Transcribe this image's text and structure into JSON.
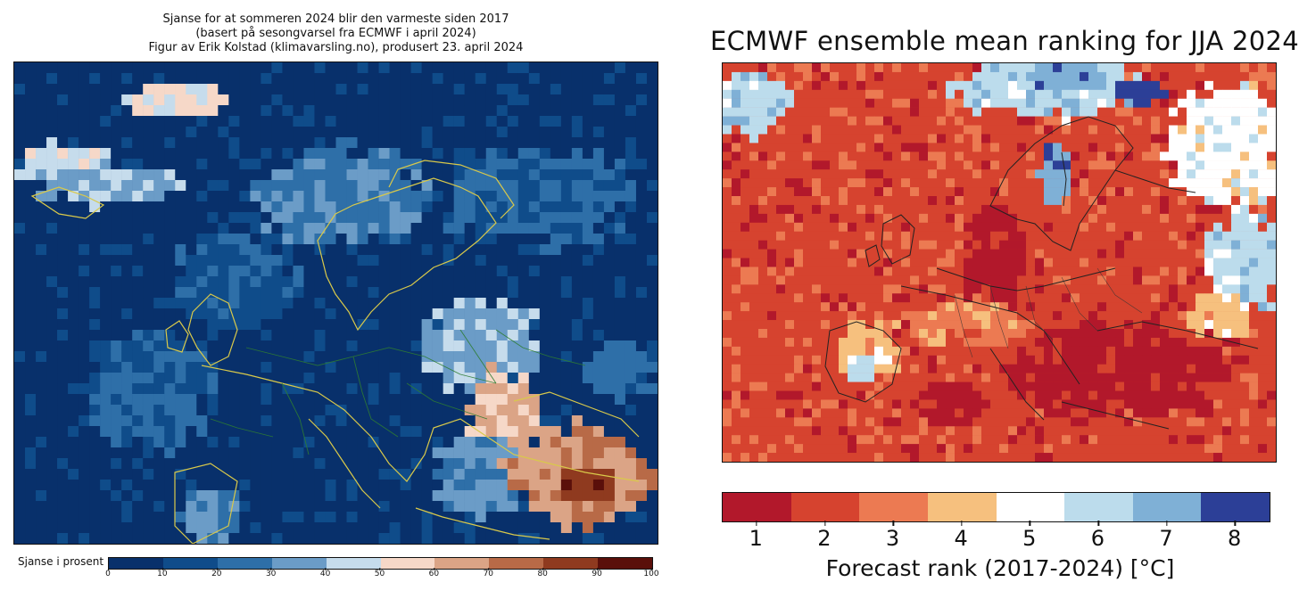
{
  "left_panel": {
    "title_lines": [
      "Sjanse for at sommeren 2024 blir den varmeste siden 2017",
      "(basert på sesongvarsel fra ECMWF i april 2024)",
      "Figur av Erik Kolstad (klimavarsling.no), produsert 23. april 2024"
    ],
    "colorbar": {
      "label": "Sjanse i prosent",
      "ticks": [
        "0",
        "10",
        "20",
        "30",
        "40",
        "50",
        "60",
        "70",
        "80",
        "90",
        "100"
      ],
      "colors": [
        "#08306b",
        "#0f4c8a",
        "#2e6fa8",
        "#6b9cc7",
        "#c6dcec",
        "#f6d8c8",
        "#dba486",
        "#b86a47",
        "#8f3a1f",
        "#5a0f0a"
      ]
    }
  },
  "right_panel": {
    "title": "ECMWF ensemble mean ranking for JJA 2024",
    "colorbar": {
      "label": "Forecast rank (2017-2024) [°C]",
      "ticks": [
        "1",
        "2",
        "3",
        "4",
        "5",
        "6",
        "7",
        "8"
      ],
      "colors": [
        "#b2182b",
        "#d6432f",
        "#ec7a52",
        "#f6c07e",
        "#ffffff",
        "#bcdcec",
        "#7fb0d6",
        "#2c3f97"
      ]
    }
  },
  "map_data": {
    "left_map": {
      "type": "heatmap",
      "cols": 60,
      "rows": 45,
      "value_units": "percent",
      "background_value": 5,
      "regions": [
        {
          "cx": 15,
          "cy": 3,
          "rx": 5,
          "ry": 2,
          "v": 52
        },
        {
          "cx": 4,
          "cy": 9,
          "rx": 5,
          "ry": 2,
          "v": 48
        },
        {
          "cx": 9,
          "cy": 11,
          "rx": 8,
          "ry": 2,
          "v": 38
        },
        {
          "cx": 30,
          "cy": 12,
          "rx": 9,
          "ry": 5,
          "v": 28
        },
        {
          "cx": 43,
          "cy": 26,
          "rx": 6,
          "ry": 5,
          "v": 38
        },
        {
          "cx": 45,
          "cy": 32,
          "rx": 4,
          "ry": 4,
          "v": 62
        },
        {
          "cx": 43,
          "cy": 38,
          "rx": 5,
          "ry": 4,
          "v": 32
        },
        {
          "cx": 52,
          "cy": 38,
          "rx": 7,
          "ry": 5,
          "v": 68
        },
        {
          "cx": 53,
          "cy": 39,
          "rx": 3,
          "ry": 2,
          "v": 88
        },
        {
          "cx": 18,
          "cy": 42,
          "rx": 3,
          "ry": 3,
          "v": 30
        },
        {
          "cx": 56,
          "cy": 28,
          "rx": 4,
          "ry": 3,
          "v": 22
        },
        {
          "cx": 48,
          "cy": 12,
          "rx": 10,
          "ry": 5,
          "v": 22
        },
        {
          "cx": 20,
          "cy": 20,
          "rx": 6,
          "ry": 5,
          "v": 18
        },
        {
          "cx": 12,
          "cy": 30,
          "rx": 7,
          "ry": 6,
          "v": 20
        }
      ]
    },
    "right_map": {
      "type": "heatmap",
      "cols": 62,
      "rows": 45,
      "value_units": "forecast rank",
      "background_value": 2,
      "regions": [
        {
          "cx": 3,
          "cy": 4,
          "rx": 5,
          "ry": 4,
          "v": 6
        },
        {
          "cx": 36,
          "cy": 2,
          "rx": 12,
          "ry": 4,
          "v": 6
        },
        {
          "cx": 38,
          "cy": 1,
          "rx": 5,
          "ry": 2,
          "v": 7
        },
        {
          "cx": 46,
          "cy": 3,
          "rx": 3,
          "ry": 2,
          "v": 8
        },
        {
          "cx": 56,
          "cy": 9,
          "rx": 7,
          "ry": 8,
          "v": 5
        },
        {
          "cx": 58,
          "cy": 22,
          "rx": 5,
          "ry": 6,
          "v": 6
        },
        {
          "cx": 55,
          "cy": 28,
          "rx": 4,
          "ry": 3,
          "v": 4
        },
        {
          "cx": 37,
          "cy": 12,
          "rx": 2,
          "ry": 4,
          "v": 7
        },
        {
          "cx": 16,
          "cy": 32,
          "rx": 4,
          "ry": 4,
          "v": 4
        },
        {
          "cx": 15,
          "cy": 34,
          "rx": 2,
          "ry": 2,
          "v": 6
        },
        {
          "cx": 30,
          "cy": 22,
          "rx": 4,
          "ry": 8,
          "v": 1
        },
        {
          "cx": 44,
          "cy": 34,
          "rx": 14,
          "ry": 6,
          "v": 1
        },
        {
          "cx": 25,
          "cy": 38,
          "rx": 4,
          "ry": 3,
          "v": 1
        },
        {
          "cx": 12,
          "cy": 22,
          "rx": 6,
          "ry": 6,
          "v": 2
        },
        {
          "cx": 44,
          "cy": 20,
          "rx": 8,
          "ry": 6,
          "v": 2
        },
        {
          "cx": 27,
          "cy": 29,
          "rx": 8,
          "ry": 3,
          "v": 3
        }
      ]
    }
  }
}
